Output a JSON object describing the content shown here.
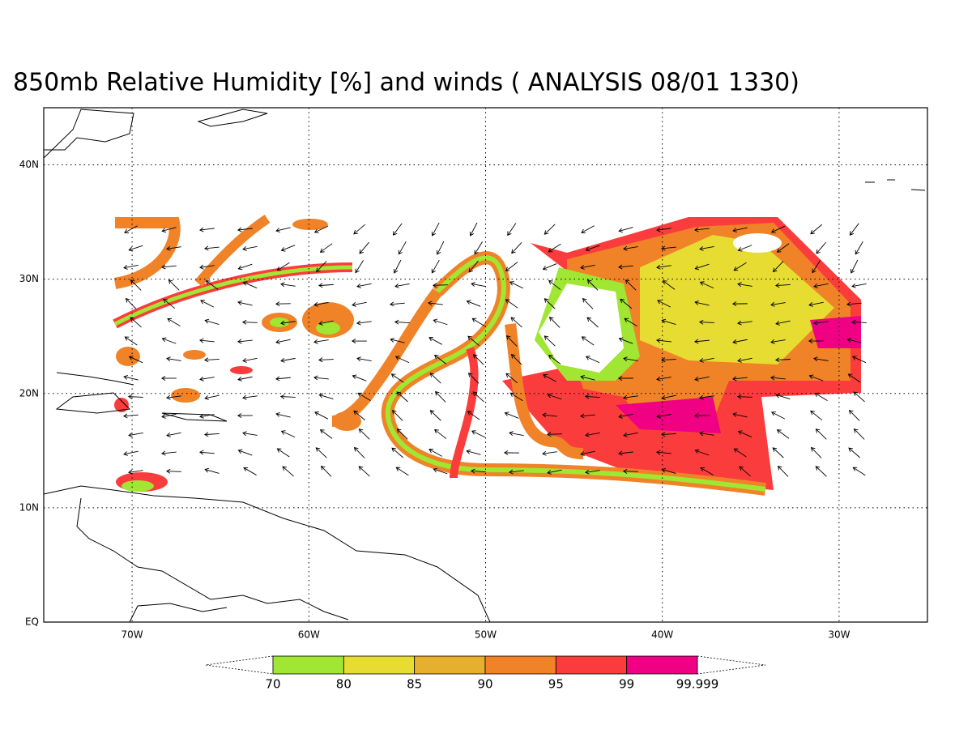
{
  "title": "850mb Relative Humidity [%] and winds ( ANALYSIS 08/01 1330)",
  "map": {
    "lonlim": [
      -75,
      -25
    ],
    "latlim": [
      0,
      45
    ],
    "lat_ticks": [
      {
        "value": 0,
        "label": "EQ"
      },
      {
        "value": 10,
        "label": "10N"
      },
      {
        "value": 20,
        "label": "20N"
      },
      {
        "value": 30,
        "label": "30N"
      },
      {
        "value": 40,
        "label": "40N"
      }
    ],
    "lon_ticks": [
      {
        "value": -70,
        "label": "70W"
      },
      {
        "value": -60,
        "label": "60W"
      },
      {
        "value": -50,
        "label": "50W"
      },
      {
        "value": -40,
        "label": "40W"
      },
      {
        "value": -30,
        "label": "30W"
      }
    ],
    "grid": true
  },
  "colorbar": {
    "levels": [
      70,
      80,
      85,
      90,
      95,
      99,
      99.999
    ],
    "colors": [
      "#a0e632",
      "#e6dc32",
      "#e6af2d",
      "#f08228",
      "#fa3c3c",
      "#f00082"
    ]
  }
}
